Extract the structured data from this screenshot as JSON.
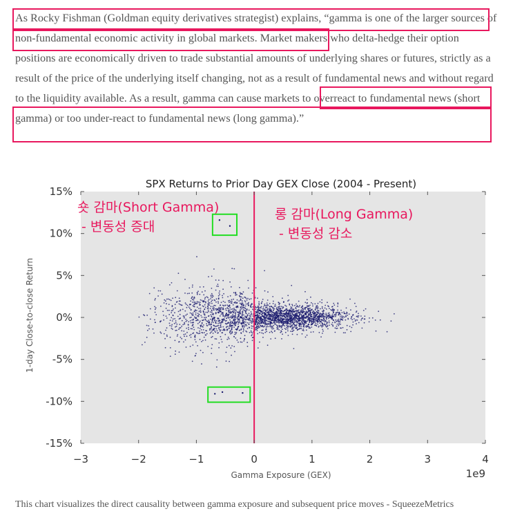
{
  "quote": {
    "text": "As Rocky Fishman (Goldman equity derivatives strategist) explains, “gamma is one of the larger sources of non-fundamental economic activity in global markets. Market makers who delta-hedge their option positions are economically driven to trade substantial amounts of underlying shares or futures, strictly as a result of the price of the underlying itself changing, not as a result of fundamental news and without regard to the liquidity available. As a result, gamma can cause markets to overreact to fundamental news (short gamma) or too under-react to fundamental news (long gamma).”"
  },
  "highlight_color": "#e8175d",
  "annotation_color": "#e8175d",
  "box_color": "#22dd22",
  "chart_data": {
    "type": "scatter",
    "title": "SPX Returns to Prior Day GEX Close (2004 - Present)",
    "xlabel": "Gamma Exposure (GEX)",
    "ylabel": "1-day Close-to-close Return",
    "x_offset_text": "1e9",
    "xlim": [
      -3,
      4
    ],
    "ylim": [
      -15,
      15
    ],
    "x_ticks": [
      {
        "value": -3,
        "label": "−3"
      },
      {
        "value": -2,
        "label": "−2"
      },
      {
        "value": -1,
        "label": "−1"
      },
      {
        "value": 0,
        "label": "0"
      },
      {
        "value": 1,
        "label": "1"
      },
      {
        "value": 2,
        "label": "2"
      },
      {
        "value": 3,
        "label": "3"
      },
      {
        "value": 4,
        "label": "4"
      }
    ],
    "y_ticks": [
      {
        "value": 15,
        "label": "15%"
      },
      {
        "value": 10,
        "label": "10%"
      },
      {
        "value": 5,
        "label": "5%"
      },
      {
        "value": 0,
        "label": "0%"
      },
      {
        "value": -5,
        "label": "-5%"
      },
      {
        "value": -10,
        "label": "-10%"
      },
      {
        "value": -15,
        "label": "-15%"
      }
    ],
    "grid": false,
    "background": "#e5e5e5",
    "point_color": "#1a1a6e",
    "vertical_line": {
      "x": 0,
      "color": "#e8175d"
    },
    "annotations": [
      {
        "line1": "숏 감마(Short Gamma)",
        "line2": " - 변동성 증대"
      },
      {
        "line1": "롱 감마(Long Gamma)",
        "line2": " - 변동성 감소"
      }
    ],
    "highlight_boxes": [
      {
        "x0": -0.72,
        "x1": -0.3,
        "y0": 9.8,
        "y1": 12.3
      },
      {
        "x0": -0.8,
        "x1": -0.07,
        "y0": -10.1,
        "y1": -8.3
      }
    ],
    "outlier_points": [
      {
        "x": -0.6,
        "y": 11.6
      },
      {
        "x": -0.42,
        "y": 10.9
      },
      {
        "x": -0.68,
        "y": -9.1
      },
      {
        "x": -0.55,
        "y": -8.9
      },
      {
        "x": -0.2,
        "y": -9.0
      }
    ],
    "clusters": [
      {
        "x_mean": -0.9,
        "x_sd": 0.45,
        "y_sd": 1.9,
        "n": 650,
        "x_min": -2.0,
        "x_max": -0.02
      },
      {
        "x_mean": 0.55,
        "x_sd": 0.55,
        "y_sd": 0.75,
        "n": 1900,
        "x_min": 0.0,
        "x_max": 2.9
      },
      {
        "x_mean": -0.3,
        "x_sd": 0.25,
        "y_sd": 1.3,
        "n": 500,
        "x_min": -0.9,
        "x_max": 0.3
      }
    ]
  },
  "caption": "This chart visualizes the direct causality between gamma exposure and subsequent price moves - SqueezeMetrics"
}
